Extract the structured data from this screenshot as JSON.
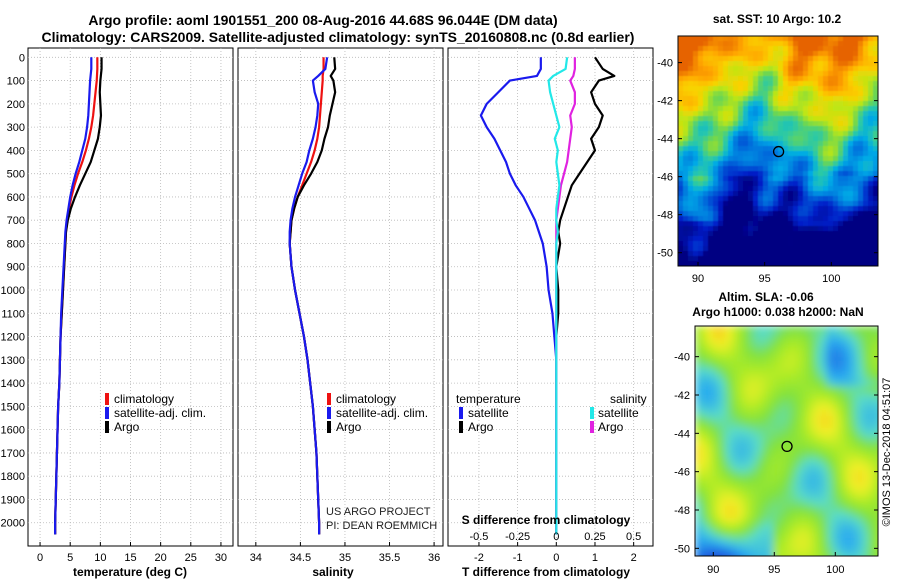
{
  "title_line1": "Argo profile: aoml 1901551_200 08-Aug-2016 44.68S 96.044E (DM data)",
  "title_line2": "Climatology: CARS2009. Satellite-adjusted climatology: synTS_20160808.nc (0.8d earlier)",
  "depth_ticks": [
    "0",
    "100",
    "200",
    "300",
    "400",
    "500",
    "600",
    "700",
    "800",
    "900",
    "1000",
    "1100",
    "1200",
    "1300",
    "1400",
    "1500",
    "1600",
    "1700",
    "1800",
    "1900",
    "2000"
  ],
  "colors": {
    "climatology": "#ee1111",
    "satellite": "#1a1aee",
    "argo": "#000000",
    "sal_sat": "#22e8e8",
    "sal_argo": "#e022e0"
  },
  "chart_data": [
    {
      "type": "line",
      "name": "temperature",
      "xlabel": "temperature (deg C)",
      "ylabel": "",
      "xlim": [
        -2,
        32
      ],
      "ylim": [
        2100,
        -40
      ],
      "xticks": [
        "0",
        "5",
        "10",
        "15",
        "20",
        "25",
        "30"
      ],
      "xtick_values": [
        0,
        5,
        10,
        15,
        20,
        25,
        30
      ],
      "depth": [
        0,
        50,
        100,
        150,
        200,
        250,
        300,
        350,
        400,
        450,
        500,
        550,
        600,
        650,
        700,
        750,
        800,
        850,
        900,
        1000,
        1100,
        1200,
        1300,
        1400,
        1500,
        1600,
        1700,
        1800,
        1900,
        2000,
        2050
      ],
      "series": [
        {
          "name": "climatology",
          "values": [
            9.5,
            9.5,
            9.4,
            9.2,
            9.0,
            8.8,
            8.5,
            8.1,
            7.6,
            7.0,
            6.3,
            5.7,
            5.2,
            4.8,
            4.5,
            4.3,
            4.2,
            4.1,
            4.0,
            3.8,
            3.6,
            3.4,
            3.3,
            3.2,
            3.0,
            2.9,
            2.8,
            2.7,
            2.6,
            2.5,
            2.5
          ]
        },
        {
          "name": "satellite-adj. clim.",
          "values": [
            8.5,
            8.5,
            8.3,
            8.2,
            8.1,
            8.0,
            7.8,
            7.5,
            7.0,
            6.5,
            5.9,
            5.4,
            5.0,
            4.7,
            4.4,
            4.2,
            4.1,
            4.0,
            3.9,
            3.7,
            3.5,
            3.4,
            3.3,
            3.2,
            3.0,
            2.9,
            2.8,
            2.7,
            2.6,
            2.5,
            2.5
          ]
        },
        {
          "name": "Argo",
          "values": [
            10.2,
            10.2,
            10.0,
            9.9,
            10.0,
            10.1,
            9.9,
            9.6,
            9.0,
            8.4,
            7.5,
            6.6,
            5.8,
            5.1,
            4.6,
            4.3,
            4.2,
            4.1,
            4.0,
            3.8,
            3.6,
            3.4,
            3.3,
            3.2,
            3.0,
            2.9,
            2.8,
            2.7,
            2.6,
            2.5,
            2.5
          ]
        }
      ],
      "legend": [
        {
          "label": "climatology",
          "color": "#ee1111"
        },
        {
          "label": "satellite-adj. clim.",
          "color": "#1a1aee"
        },
        {
          "label": "Argo",
          "color": "#000000"
        }
      ]
    },
    {
      "type": "line",
      "name": "salinity",
      "xlabel": "salinity",
      "ylabel": "",
      "xlim": [
        33.8,
        36.1
      ],
      "ylim": [
        2100,
        -40
      ],
      "xticks": [
        "34",
        "34.5",
        "35",
        "35.5",
        "36"
      ],
      "xtick_values": [
        34,
        34.5,
        35,
        35.5,
        36
      ],
      "depth": [
        0,
        50,
        80,
        100,
        150,
        200,
        250,
        300,
        350,
        400,
        450,
        500,
        550,
        600,
        650,
        700,
        750,
        800,
        850,
        900,
        1000,
        1100,
        1200,
        1300,
        1400,
        1500,
        1600,
        1700,
        1800,
        1900,
        2000,
        2050
      ],
      "series": [
        {
          "name": "climatology",
          "values": [
            34.76,
            34.76,
            34.75,
            34.75,
            34.74,
            34.73,
            34.72,
            34.71,
            34.69,
            34.66,
            34.62,
            34.57,
            34.52,
            34.47,
            34.43,
            34.4,
            34.39,
            34.38,
            34.39,
            34.4,
            34.44,
            34.49,
            34.54,
            34.58,
            34.61,
            34.64,
            34.66,
            34.68,
            34.69,
            34.7,
            34.71,
            34.71
          ]
        },
        {
          "name": "satellite-adj. clim.",
          "values": [
            34.8,
            34.78,
            34.7,
            34.64,
            34.66,
            34.7,
            34.69,
            34.67,
            34.64,
            34.6,
            34.57,
            34.52,
            34.48,
            34.44,
            34.41,
            34.39,
            34.38,
            34.38,
            34.39,
            34.4,
            34.44,
            34.49,
            34.54,
            34.58,
            34.61,
            34.64,
            34.66,
            34.68,
            34.69,
            34.7,
            34.71,
            34.71
          ]
        },
        {
          "name": "Argo",
          "values": [
            34.88,
            34.89,
            34.84,
            34.87,
            34.89,
            34.86,
            34.83,
            34.81,
            34.77,
            34.74,
            34.69,
            34.62,
            34.54,
            34.47,
            34.43,
            34.4,
            34.39,
            34.38,
            34.39,
            34.4,
            34.44,
            34.49,
            34.54,
            34.58,
            34.61,
            34.64,
            34.66,
            34.68,
            34.69,
            34.7,
            34.71,
            34.71
          ]
        }
      ],
      "legend": [
        {
          "label": "climatology",
          "color": "#ee1111"
        },
        {
          "label": "satellite-adj. clim.",
          "color": "#1a1aee"
        },
        {
          "label": "Argo",
          "color": "#000000"
        }
      ],
      "annotations": [
        "US ARGO PROJECT",
        "PI: DEAN ROEMMICH"
      ]
    },
    {
      "type": "line",
      "name": "difference",
      "xlabel": "T difference from climatology",
      "xlabel2": "S difference from climatology",
      "xlim": [
        -2.8,
        2.5
      ],
      "ylim": [
        2100,
        -40
      ],
      "xticks": [
        "-2",
        "-1",
        "0",
        "1",
        "2"
      ],
      "xtick_values": [
        -2,
        -1,
        0,
        1,
        2
      ],
      "xticks_top": [
        "-0.5",
        "-0.25",
        "0",
        "0.25",
        "0.5"
      ],
      "xtick_values_top": [
        -0.5,
        -0.25,
        0,
        0.25,
        0.5
      ],
      "s_scale": 4,
      "depth": [
        0,
        50,
        80,
        100,
        150,
        200,
        250,
        300,
        350,
        400,
        450,
        500,
        550,
        600,
        650,
        700,
        750,
        800,
        850,
        900,
        1000,
        1100,
        1200,
        1300,
        1400,
        1500,
        1600,
        1700,
        1800,
        1900,
        2000,
        2050
      ],
      "series": [
        {
          "name": "temperature satellite",
          "values": [
            -0.4,
            -0.4,
            -0.5,
            -1.2,
            -1.5,
            -1.8,
            -1.95,
            -1.8,
            -1.6,
            -1.45,
            -1.3,
            -1.2,
            -1.05,
            -0.85,
            -0.7,
            -0.55,
            -0.45,
            -0.35,
            -0.3,
            -0.25,
            -0.2,
            -0.1,
            -0.05,
            0,
            0,
            0,
            0,
            0,
            0,
            0,
            0,
            0
          ]
        },
        {
          "name": "temperature Argo",
          "values": [
            1.0,
            1.2,
            1.5,
            1.1,
            0.9,
            1.0,
            1.2,
            1.1,
            0.9,
            1.0,
            0.8,
            0.6,
            0.4,
            0.3,
            0.2,
            0.1,
            0.05,
            0.1,
            0.05,
            0,
            0.05,
            0.05,
            0,
            0,
            0,
            0,
            0,
            0,
            0,
            0,
            0,
            0
          ]
        },
        {
          "name": "salinity satellite",
          "values": [
            0.07,
            0.06,
            -0.02,
            -0.05,
            -0.04,
            -0.02,
            0,
            0.02,
            -0.01,
            0.01,
            0,
            0.01,
            0.02,
            0.01,
            0,
            0,
            0.01,
            0,
            0,
            0,
            0,
            0,
            0,
            0,
            0,
            0,
            0,
            0,
            0,
            0,
            0,
            0
          ]
        },
        {
          "name": "salinity Argo",
          "values": [
            0.12,
            0.12,
            0.11,
            0.09,
            0.12,
            0.12,
            0.09,
            0.1,
            0.09,
            0.08,
            0.07,
            0.05,
            0.03,
            0.02,
            0.01,
            0,
            0,
            0,
            0,
            0,
            0,
            0,
            0,
            0,
            0,
            0,
            0,
            0,
            0,
            0,
            0,
            0
          ]
        }
      ],
      "legend_temp_title": "temperature",
      "legend_sal_title": "salinity",
      "legend_temp": [
        {
          "label": "satellite",
          "color": "#1a1aee"
        },
        {
          "label": "Argo",
          "color": "#000000"
        }
      ],
      "legend_sal": [
        {
          "label": "satellite",
          "color": "#22e8e8"
        },
        {
          "label": "Argo",
          "color": "#e022e0"
        }
      ]
    },
    {
      "type": "heatmap",
      "name": "sst-map",
      "title": "sat. SST: 10 Argo: 10.2",
      "xlim": [
        88.5,
        103.5
      ],
      "ylim": [
        -50.7,
        -38.6
      ],
      "xticks": [
        "90",
        "95",
        "100"
      ],
      "xtick_values": [
        90,
        95,
        100
      ],
      "yticks": [
        "-40",
        "-42",
        "-44",
        "-46",
        "-48",
        "-50"
      ],
      "ytick_values": [
        -40,
        -42,
        -44,
        -46,
        -48,
        -50
      ],
      "marker": {
        "lon": 96.044,
        "lat": -44.68
      }
    },
    {
      "type": "heatmap",
      "name": "sla-map",
      "title": "Altim. SLA: -0.06",
      "subtitle": "Argo h1000: 0.038 h2000: NaN",
      "xlim": [
        88.5,
        103.5
      ],
      "ylim": [
        -50.4,
        -38.4
      ],
      "xticks": [
        "90",
        "95",
        "100"
      ],
      "xtick_values": [
        90,
        95,
        100
      ],
      "yticks": [
        "-40",
        "-42",
        "-44",
        "-46",
        "-48",
        "-50"
      ],
      "ytick_values": [
        -40,
        -42,
        -44,
        -46,
        -48,
        -50
      ],
      "marker": {
        "lon": 96.044,
        "lat": -44.68
      }
    }
  ],
  "imos_stamp": "©IMOS 13-Dec-2018 04:51:07"
}
